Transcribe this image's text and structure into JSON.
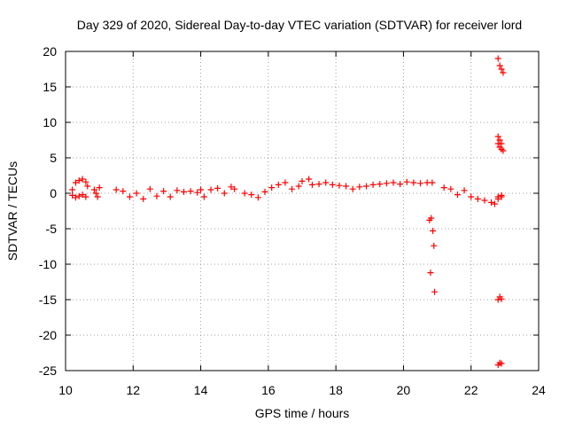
{
  "chart_data": {
    "type": "scatter",
    "title": "Day 329 of 2020, Sidereal Day-to-day VTEC variation (SDTVAR) for receiver lord",
    "xlabel": "GPS time / hours",
    "ylabel": "SDTVAR / TECUs",
    "xlim": [
      10,
      24
    ],
    "ylim": [
      -25,
      20
    ],
    "x_ticks": [
      10,
      12,
      14,
      16,
      18,
      20,
      22,
      24
    ],
    "y_ticks": [
      20,
      15,
      10,
      5,
      0,
      -5,
      -10,
      -15,
      -20,
      -25
    ],
    "x_tick_labels": [
      "10",
      "12",
      "14",
      "16",
      "18",
      "20",
      "22",
      "24"
    ],
    "y_tick_labels": [
      "20",
      "15",
      "10",
      "5",
      "0",
      "-5",
      "-10",
      "-15",
      "-20",
      "-25"
    ],
    "grid": true,
    "marker": "+",
    "color": "#ff0000",
    "series": [
      {
        "name": "SDTVAR",
        "x": [
          10.2,
          10.3,
          10.4,
          10.5,
          10.6,
          10.65,
          10.2,
          10.3,
          10.4,
          10.5,
          10.6,
          10.85,
          10.9,
          10.95,
          11.0,
          11.5,
          11.7,
          11.9,
          12.1,
          12.3,
          12.5,
          12.7,
          12.9,
          13.1,
          13.3,
          13.5,
          13.7,
          13.9,
          14.0,
          14.1,
          14.3,
          14.5,
          14.7,
          14.9,
          15.0,
          15.3,
          15.5,
          15.7,
          15.9,
          16.1,
          16.3,
          16.5,
          16.7,
          16.9,
          17.0,
          17.2,
          17.3,
          17.5,
          17.7,
          17.9,
          18.1,
          18.3,
          18.5,
          18.7,
          18.9,
          19.1,
          19.3,
          19.5,
          19.7,
          19.9,
          20.1,
          20.3,
          20.5,
          20.7,
          20.85,
          20.77,
          20.8,
          20.82,
          20.87,
          20.9,
          20.92,
          21.2,
          21.4,
          21.6,
          21.8,
          22.0,
          22.2,
          22.4,
          22.6,
          22.8,
          22.9,
          22.8,
          22.85,
          22.9,
          22.95,
          22.8,
          22.85,
          22.9,
          22.95,
          22.8,
          22.85,
          22.9,
          22.8,
          22.85,
          22.9,
          22.8,
          22.85,
          22.9,
          22.7,
          22.8,
          22.9
        ],
        "y": [
          0.5,
          1.5,
          1.8,
          2.0,
          1.6,
          1.0,
          -0.3,
          -0.6,
          -0.4,
          -0.2,
          -0.5,
          0.5,
          0.0,
          -0.5,
          0.8,
          0.5,
          0.3,
          -0.5,
          0.0,
          -0.8,
          0.6,
          -0.4,
          0.3,
          -0.5,
          0.4,
          0.2,
          0.3,
          0.1,
          0.5,
          -0.5,
          0.5,
          0.7,
          0.0,
          0.9,
          0.6,
          0.0,
          -0.2,
          -0.6,
          0.2,
          0.8,
          1.2,
          1.5,
          0.6,
          1.0,
          1.7,
          2.0,
          1.2,
          1.3,
          1.5,
          1.2,
          1.1,
          1.0,
          0.6,
          0.9,
          1.0,
          1.2,
          1.3,
          1.4,
          1.5,
          1.3,
          1.6,
          1.5,
          1.4,
          1.5,
          1.5,
          -3.8,
          -11.2,
          -3.5,
          -5.3,
          -7.4,
          -13.9,
          0.8,
          0.6,
          -0.2,
          0.4,
          -0.5,
          -0.8,
          -1.0,
          -1.3,
          -0.5,
          -0.5,
          19.0,
          18.0,
          17.5,
          17.0,
          8.0,
          7.5,
          7.0,
          6.0,
          7.0,
          6.5,
          6.2,
          -15.0,
          -14.6,
          -14.9,
          -24.2,
          -23.9,
          -24.0,
          -1.5,
          -0.8,
          -0.3
        ]
      }
    ]
  }
}
